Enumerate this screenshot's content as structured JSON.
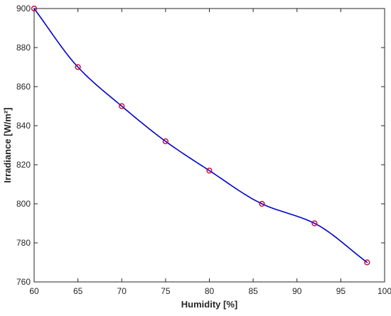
{
  "chart_data": {
    "type": "line",
    "xlabel": "Humidity [%]",
    "ylabel": "Irradiance [W/m²]",
    "xlim": [
      60,
      100
    ],
    "ylim": [
      760,
      900
    ],
    "x_ticks": [
      60,
      65,
      70,
      75,
      80,
      85,
      90,
      95,
      100
    ],
    "y_ticks": [
      760,
      780,
      800,
      820,
      840,
      860,
      880,
      900
    ],
    "grid": false,
    "legend": "none",
    "series": [
      {
        "x": [
          60,
          65,
          70,
          75,
          80,
          86,
          92,
          98
        ],
        "y": [
          900,
          870,
          850,
          832,
          817,
          800,
          790,
          770
        ],
        "line": "smooth",
        "line_color": "#0000cc",
        "marker": "circle",
        "marker_color": "#cc0033"
      }
    ]
  }
}
